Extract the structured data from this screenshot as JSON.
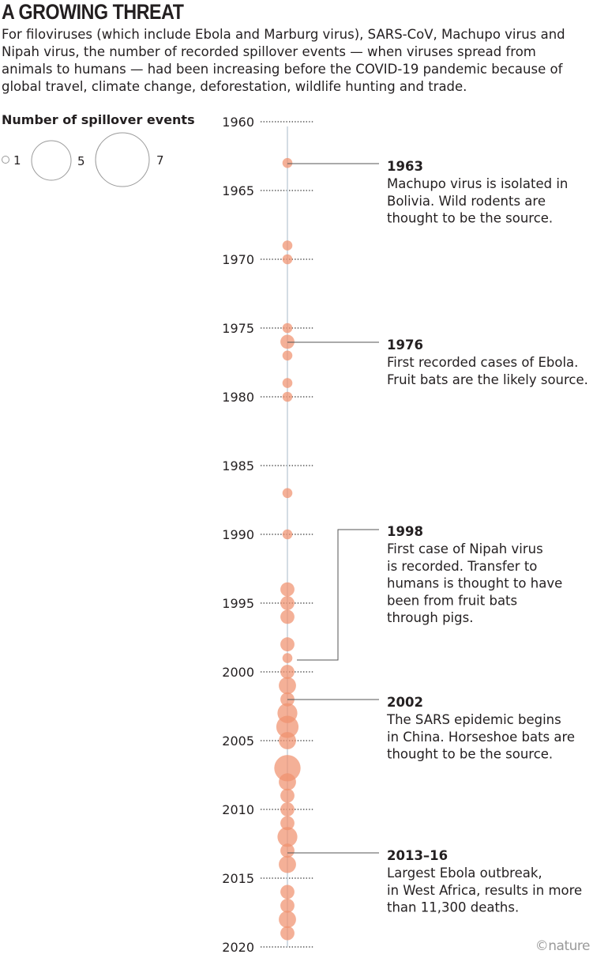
{
  "header": {
    "title": "A GROWING THREAT",
    "subtitle": "For filoviruses (which include Ebola and Marburg virus), SARS-CoV, Machupo virus and Nipah virus, the number of recorded spillover events — when viruses spread from animals to humans — had been increasing before the COVID-19 pandemic because of global travel, climate change, deforestation, wildlife hunting and trade."
  },
  "legend": {
    "title": "Number of spillover events",
    "sizes": [
      1,
      5,
      7
    ]
  },
  "colors": {
    "bubble": "#f0926f",
    "axis_line": "#c8d3dd",
    "leader": "#555555",
    "text": "#231f20"
  },
  "credit": "©nature",
  "chart_data": {
    "type": "scatter",
    "encoding": "bubble size = number of spillover events per year",
    "y_axis": {
      "range": [
        1960,
        2020
      ],
      "ticks": [
        1960,
        1965,
        1970,
        1975,
        1980,
        1985,
        1990,
        1995,
        2000,
        2005,
        2010,
        2015,
        2020
      ]
    },
    "points": [
      {
        "year": 1963,
        "events": 1
      },
      {
        "year": 1969,
        "events": 1
      },
      {
        "year": 1970,
        "events": 1
      },
      {
        "year": 1975,
        "events": 1
      },
      {
        "year": 1976,
        "events": 2
      },
      {
        "year": 1977,
        "events": 1
      },
      {
        "year": 1979,
        "events": 1
      },
      {
        "year": 1980,
        "events": 1
      },
      {
        "year": 1987,
        "events": 1
      },
      {
        "year": 1990,
        "events": 1
      },
      {
        "year": 1994,
        "events": 2
      },
      {
        "year": 1995,
        "events": 2
      },
      {
        "year": 1996,
        "events": 2
      },
      {
        "year": 1998,
        "events": 2
      },
      {
        "year": 1999,
        "events": 1
      },
      {
        "year": 2000,
        "events": 2
      },
      {
        "year": 2001,
        "events": 3
      },
      {
        "year": 2002,
        "events": 2
      },
      {
        "year": 2003,
        "events": 4
      },
      {
        "year": 2004,
        "events": 5
      },
      {
        "year": 2005,
        "events": 3
      },
      {
        "year": 2007,
        "events": 7
      },
      {
        "year": 2008,
        "events": 3
      },
      {
        "year": 2009,
        "events": 2
      },
      {
        "year": 2010,
        "events": 2
      },
      {
        "year": 2011,
        "events": 2
      },
      {
        "year": 2012,
        "events": 4
      },
      {
        "year": 2013,
        "events": 2
      },
      {
        "year": 2014,
        "events": 3
      },
      {
        "year": 2016,
        "events": 2
      },
      {
        "year": 2017,
        "events": 2
      },
      {
        "year": 2018,
        "events": 3
      },
      {
        "year": 2019,
        "events": 2
      }
    ],
    "annotations": [
      {
        "year_label": "1963",
        "text": [
          "Machupo virus is isolated in",
          "Bolivia. Wild rodents are",
          "thought to be the source."
        ]
      },
      {
        "year_label": "1976",
        "text": [
          "First recorded cases of Ebola.",
          "Fruit bats are the likely source."
        ]
      },
      {
        "year_label": "1998",
        "text": [
          "First case of Nipah virus",
          "is recorded. Transfer to",
          "humans is thought to have",
          "been from fruit bats",
          "through pigs."
        ]
      },
      {
        "year_label": "2002",
        "text": [
          "The SARS epidemic begins",
          "in China. Horseshoe bats are",
          "thought to be the source."
        ]
      },
      {
        "year_label": "2013–16",
        "text": [
          "Largest Ebola outbreak,",
          "in West Africa, results in more",
          "than 11,300 deaths."
        ]
      }
    ]
  }
}
